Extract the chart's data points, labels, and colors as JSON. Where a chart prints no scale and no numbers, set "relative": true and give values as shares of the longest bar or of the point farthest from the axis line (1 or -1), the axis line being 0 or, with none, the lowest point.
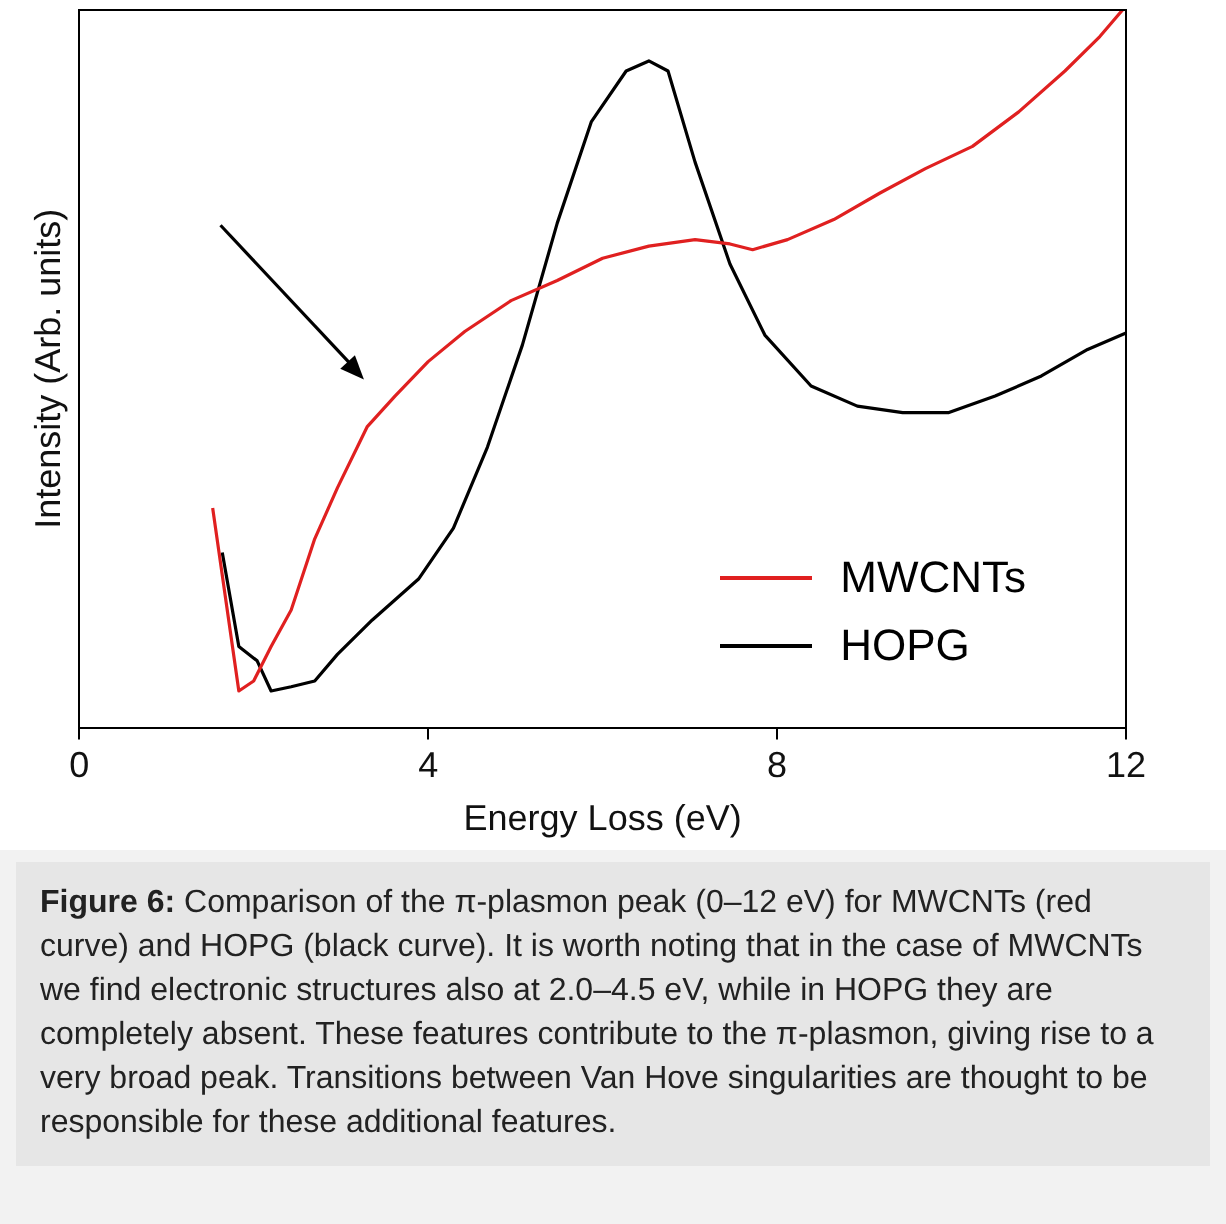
{
  "chart_data": {
    "type": "line",
    "relative": true,
    "xlabel": "Energy Loss (eV)",
    "ylabel": "Intensity (Arb. units)",
    "xlim": [
      0,
      12
    ],
    "xticks": [
      0,
      4,
      8,
      12
    ],
    "grid": false,
    "legend": "bottom right",
    "marker": "none",
    "line_style": "solid",
    "series": [
      {
        "name": "MWCNTs",
        "color": "#e02020",
        "x": [
          1.53,
          1.83,
          2.0,
          2.2,
          2.43,
          2.7,
          2.96,
          3.3,
          3.62,
          4.0,
          4.42,
          4.95,
          5.48,
          6.0,
          6.53,
          7.06,
          7.46,
          7.72,
          8.12,
          8.65,
          9.18,
          9.7,
          10.24,
          10.77,
          11.3,
          11.7,
          11.96
        ],
        "values": [
          0.306,
          0.051,
          0.065,
          0.113,
          0.164,
          0.263,
          0.334,
          0.419,
          0.462,
          0.51,
          0.552,
          0.595,
          0.623,
          0.654,
          0.671,
          0.68,
          0.674,
          0.666,
          0.68,
          0.708,
          0.745,
          0.779,
          0.81,
          0.858,
          0.915,
          0.963,
          1.0
        ]
      },
      {
        "name": "HOPG",
        "color": "#000000",
        "x": [
          1.64,
          1.83,
          2.04,
          2.2,
          2.43,
          2.7,
          2.96,
          3.36,
          3.89,
          4.29,
          4.68,
          5.08,
          5.48,
          5.87,
          6.27,
          6.53,
          6.75,
          7.06,
          7.46,
          7.86,
          8.39,
          8.92,
          9.44,
          9.97,
          10.5,
          11.03,
          11.56,
          12.0
        ],
        "values": [
          0.244,
          0.113,
          0.093,
          0.051,
          0.057,
          0.065,
          0.102,
          0.15,
          0.207,
          0.278,
          0.391,
          0.533,
          0.703,
          0.844,
          0.915,
          0.929,
          0.915,
          0.788,
          0.646,
          0.547,
          0.476,
          0.448,
          0.439,
          0.439,
          0.462,
          0.49,
          0.527,
          0.55
        ]
      }
    ],
    "annotations": [
      "Figure 6:",
      "Comparison of the π-plasmon peak (0–12 eV) for MWCNTs (red curve) and HOPG (black curve). It is worth noting that in the case of MWCNTs we find electronic structures also at 2.0–4.5 eV, while in HOPG they are completely absent. These features contribute to the π-plasmon, giving rise to a very broad peak. Transitions between Van Hove singularities are thought to be responsible for these additional features."
    ]
  }
}
